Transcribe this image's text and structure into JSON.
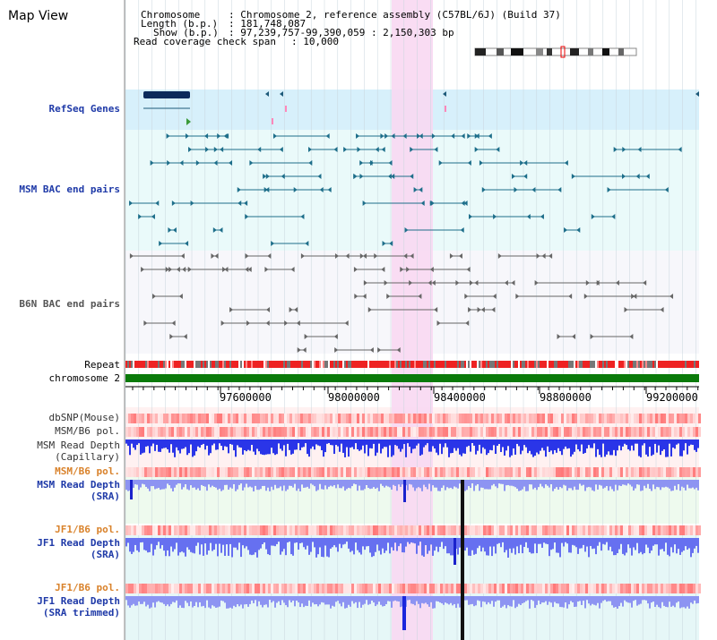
{
  "title": "Map View",
  "info": {
    "chromosome_label": "Chromosome",
    "chromosome_value": ": Chromosome 2, reference assembly (C57BL/6J) (Build 37)",
    "length_label": "Length (b.p.)",
    "length_value": ": 181,748,087",
    "show_label": "Show (b.p.)",
    "show_value": ": 97,239,757-99,390,059 : 2,150,303 bp",
    "coverage_label": "Read coverage check span",
    "coverage_value": ": 10,000"
  },
  "tracks": {
    "refseq": "RefSeq Genes",
    "msm_bac": "MSM BAC end pairs",
    "b6n_bac": "B6N BAC end pairs",
    "repeat": "Repeat",
    "chromosome": "chromosome 2",
    "dbsnp": "dbSNP(Mouse)",
    "msm_b6_pol_1": "MSM/B6 pol.",
    "msm_read_depth_cap_1": "MSM Read Depth",
    "msm_read_depth_cap_2": "(Capillary)",
    "msm_b6_pol_2": "MSM/B6 pol.",
    "msm_read_depth_sra_1": "MSM Read Depth",
    "msm_read_depth_sra_2": "(SRA)",
    "jf1_b6_pol_1": "JF1/B6 pol.",
    "jf1_read_depth_sra_1": "JF1 Read Depth",
    "jf1_read_depth_sra_2": "(SRA)",
    "jf1_b6_pol_2": "JF1/B6 pol.",
    "jf1_read_depth_trim_1": "JF1 Read Depth",
    "jf1_read_depth_trim_2": "(SRA trimmed)"
  },
  "axis_ticks": [
    "97600000",
    "98000000",
    "98400000",
    "98800000",
    "99200000"
  ],
  "colors": {
    "refseq_bg": "#d7f0fb",
    "bac_bg": "#eafafa",
    "highlight": "#f8d8f2",
    "bac_msm": "#1d6e8a",
    "bac_b6n": "#666666",
    "chromosome_bar": "#0a7a0a",
    "depth_bar": "#3344ee",
    "pol_red": "#ff5050"
  }
}
